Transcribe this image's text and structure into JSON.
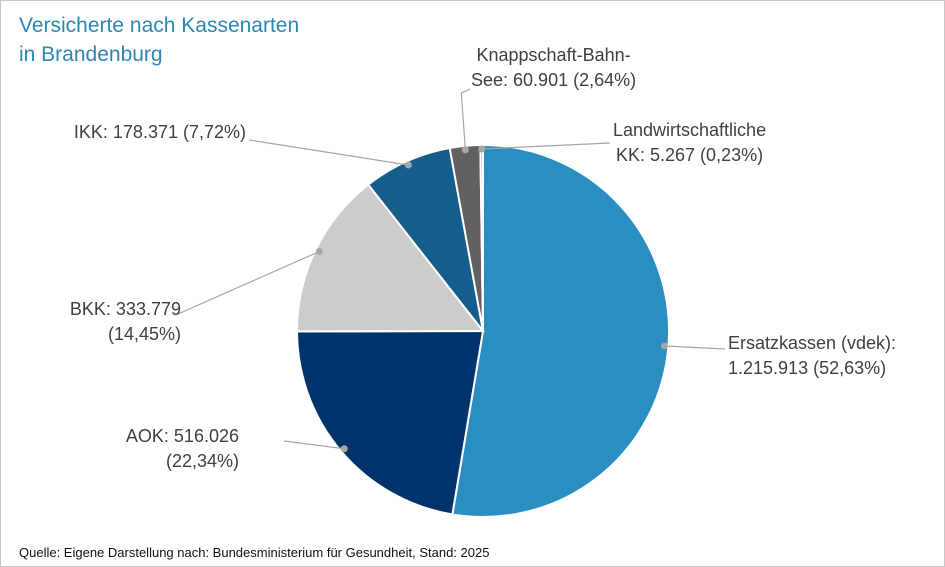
{
  "chart_data": {
    "type": "pie",
    "title": [
      "Versicherte nach Kassenarten",
      "in Brandenburg"
    ],
    "slices": [
      {
        "name": "Ersatzkassen (vdek)",
        "value": 1215913,
        "percent": 52.63,
        "color": "#2b8ec1",
        "label": [
          "Ersatzkassen (vdek):",
          "1.215.913 (52,63%)"
        ]
      },
      {
        "name": "AOK",
        "value": 516026,
        "percent": 22.34,
        "color": "#00336b",
        "label": [
          "AOK: 516.026",
          "(22,34%)"
        ]
      },
      {
        "name": "BKK",
        "value": 333779,
        "percent": 14.45,
        "color": "#cccccc",
        "label": [
          "BKK: 333.779",
          "(14,45%)"
        ]
      },
      {
        "name": "IKK",
        "value": 178371,
        "percent": 7.72,
        "color": "#155e8c",
        "label": [
          "IKK: 178.371 (7,72%)"
        ]
      },
      {
        "name": "Knappschaft-Bahn-See",
        "value": 60901,
        "percent": 2.64,
        "color": "#616161",
        "label": [
          "Knappschaft-Bahn-",
          "See: 60.901 (2,64%)"
        ]
      },
      {
        "name": "Landwirtschaftliche KK",
        "value": 5267,
        "percent": 0.23,
        "color": "#9a9a9a",
        "label": [
          "Landwirtschaftliche",
          "KK: 5.267 (0,23%)"
        ]
      }
    ],
    "source": "Quelle: Eigene Darstellung nach: Bundesministerium  für Gesundheit, Stand: 2025"
  }
}
